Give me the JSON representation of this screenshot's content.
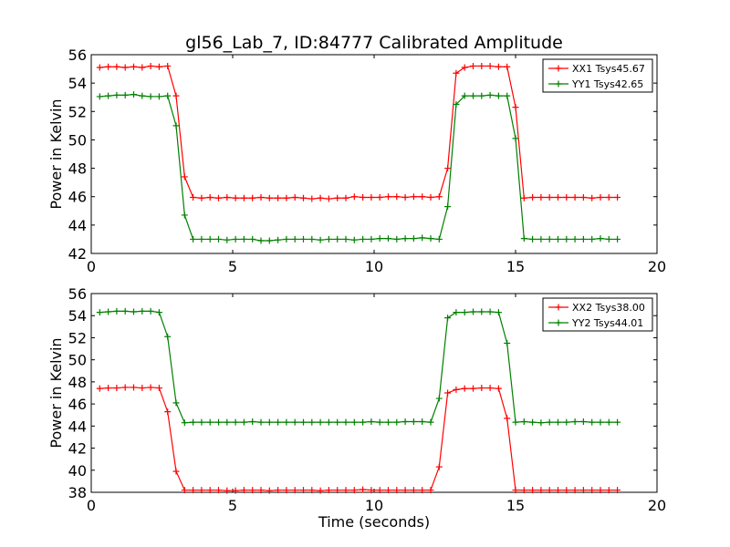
{
  "figure": {
    "title": "gl56_Lab_7, ID:84777 Calibrated Amplitude",
    "xlabel": "Time (seconds)"
  },
  "colors": {
    "xx": "#ff0000",
    "yy": "#008000"
  },
  "chart_data": [
    {
      "type": "line",
      "ylabel": "Power in Kelvin",
      "xlim": [
        0,
        20
      ],
      "ylim": [
        42,
        56
      ],
      "xticks": [
        0,
        5,
        10,
        15,
        20
      ],
      "yticks": [
        42,
        44,
        46,
        48,
        50,
        52,
        54,
        56
      ],
      "legend_position": "top-right",
      "x": [
        0.3,
        0.6,
        0.9,
        1.2,
        1.5,
        1.8,
        2.1,
        2.4,
        2.7,
        3.0,
        3.3,
        3.6,
        3.9,
        4.2,
        4.5,
        4.8,
        5.1,
        5.4,
        5.7,
        6.0,
        6.3,
        6.6,
        6.9,
        7.2,
        7.5,
        7.8,
        8.1,
        8.4,
        8.7,
        9.0,
        9.3,
        9.6,
        9.9,
        10.2,
        10.5,
        10.8,
        11.1,
        11.4,
        11.7,
        12.0,
        12.3,
        12.6,
        12.9,
        13.2,
        13.5,
        13.8,
        14.1,
        14.4,
        14.7,
        15.0,
        15.3,
        15.6,
        15.9,
        16.2,
        16.5,
        16.8,
        17.1,
        17.4,
        17.7,
        18.0,
        18.3,
        18.6
      ],
      "series": [
        {
          "name": "XX1 Tsys45.67",
          "color": "#ff0000",
          "values": [
            55.1,
            55.15,
            55.15,
            55.1,
            55.15,
            55.1,
            55.2,
            55.15,
            55.2,
            53.1,
            47.4,
            45.95,
            45.9,
            45.95,
            45.9,
            45.95,
            45.9,
            45.9,
            45.9,
            45.95,
            45.9,
            45.9,
            45.9,
            45.95,
            45.9,
            45.85,
            45.9,
            45.85,
            45.9,
            45.9,
            46.0,
            45.95,
            45.95,
            45.95,
            46.0,
            46.0,
            45.95,
            46.0,
            46.0,
            45.95,
            46.0,
            48.0,
            54.7,
            55.1,
            55.2,
            55.2,
            55.2,
            55.15,
            55.15,
            52.3,
            45.9,
            45.95,
            45.95,
            45.95,
            45.95,
            45.95,
            45.95,
            45.95,
            45.9,
            45.95,
            45.95,
            45.95
          ]
        },
        {
          "name": "YY1 Tsys42.65",
          "color": "#008000",
          "values": [
            53.05,
            53.1,
            53.15,
            53.15,
            53.2,
            53.1,
            53.05,
            53.05,
            53.1,
            51.0,
            44.7,
            43.0,
            43.0,
            43.0,
            43.0,
            42.95,
            43.0,
            43.0,
            43.0,
            42.9,
            42.9,
            42.95,
            43.0,
            43.0,
            43.0,
            43.0,
            42.95,
            43.0,
            43.0,
            43.0,
            42.95,
            43.0,
            43.0,
            43.05,
            43.05,
            43.0,
            43.05,
            43.05,
            43.1,
            43.05,
            43.0,
            45.3,
            52.5,
            53.1,
            53.1,
            53.1,
            53.15,
            53.1,
            53.1,
            50.1,
            43.05,
            43.0,
            43.0,
            43.0,
            43.0,
            43.0,
            43.0,
            43.0,
            43.0,
            43.05,
            43.0,
            43.0
          ]
        }
      ]
    },
    {
      "type": "line",
      "ylabel": "Power in Kelvin",
      "xlim": [
        0,
        20
      ],
      "ylim": [
        38,
        56
      ],
      "xticks": [
        0,
        5,
        10,
        15,
        20
      ],
      "yticks": [
        38,
        40,
        42,
        44,
        46,
        48,
        50,
        52,
        54,
        56
      ],
      "legend_position": "top-right",
      "x": [
        0.3,
        0.6,
        0.9,
        1.2,
        1.5,
        1.8,
        2.1,
        2.4,
        2.7,
        3.0,
        3.3,
        3.6,
        3.9,
        4.2,
        4.5,
        4.8,
        5.1,
        5.4,
        5.7,
        6.0,
        6.3,
        6.6,
        6.9,
        7.2,
        7.5,
        7.8,
        8.1,
        8.4,
        8.7,
        9.0,
        9.3,
        9.6,
        9.9,
        10.2,
        10.5,
        10.8,
        11.1,
        11.4,
        11.7,
        12.0,
        12.3,
        12.6,
        12.9,
        13.2,
        13.5,
        13.8,
        14.1,
        14.4,
        14.7,
        15.0,
        15.3,
        15.6,
        15.9,
        16.2,
        16.5,
        16.8,
        17.1,
        17.4,
        17.7,
        18.0,
        18.3,
        18.6
      ],
      "series": [
        {
          "name": "XX2 Tsys38.00",
          "color": "#ff0000",
          "values": [
            47.4,
            47.45,
            47.45,
            47.5,
            47.5,
            47.45,
            47.5,
            47.45,
            45.3,
            39.9,
            38.2,
            38.2,
            38.2,
            38.2,
            38.2,
            38.15,
            38.15,
            38.2,
            38.2,
            38.2,
            38.15,
            38.2,
            38.2,
            38.2,
            38.2,
            38.2,
            38.15,
            38.2,
            38.2,
            38.2,
            38.2,
            38.25,
            38.2,
            38.2,
            38.2,
            38.2,
            38.2,
            38.2,
            38.2,
            38.2,
            40.3,
            47.0,
            47.3,
            47.4,
            47.4,
            47.45,
            47.45,
            47.4,
            44.7,
            38.2,
            38.2,
            38.2,
            38.2,
            38.2,
            38.2,
            38.2,
            38.2,
            38.2,
            38.2,
            38.2,
            38.2,
            38.2
          ]
        },
        {
          "name": "YY2 Tsys44.01",
          "color": "#008000",
          "values": [
            54.3,
            54.35,
            54.4,
            54.4,
            54.35,
            54.4,
            54.4,
            54.3,
            52.1,
            46.1,
            44.3,
            44.35,
            44.35,
            44.35,
            44.35,
            44.35,
            44.35,
            44.35,
            44.4,
            44.35,
            44.35,
            44.35,
            44.35,
            44.35,
            44.35,
            44.35,
            44.35,
            44.35,
            44.35,
            44.35,
            44.35,
            44.35,
            44.4,
            44.35,
            44.35,
            44.35,
            44.4,
            44.4,
            44.4,
            44.35,
            46.5,
            53.8,
            54.3,
            54.3,
            54.35,
            54.35,
            54.35,
            54.3,
            51.5,
            44.35,
            44.4,
            44.35,
            44.3,
            44.35,
            44.35,
            44.35,
            44.4,
            44.4,
            44.35,
            44.35,
            44.35,
            44.35
          ]
        }
      ]
    }
  ]
}
